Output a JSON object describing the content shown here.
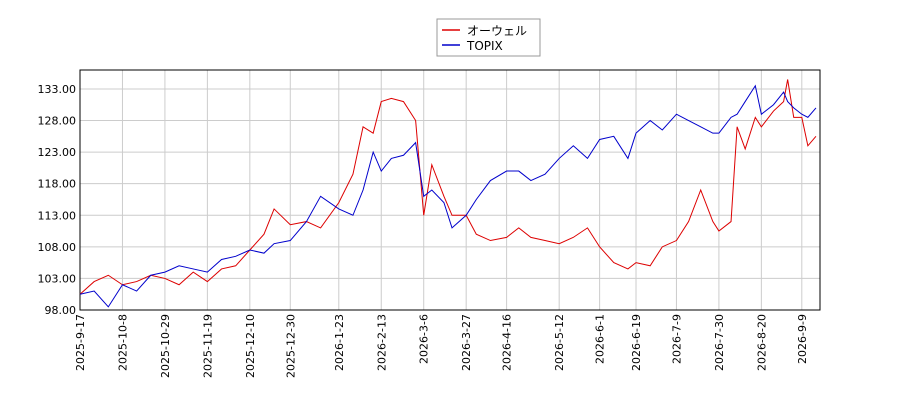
{
  "chart_data": {
    "type": "line",
    "x": [
      "2025-09-17",
      "2025-09-24",
      "2025-10-01",
      "2025-10-08",
      "2025-10-15",
      "2025-10-22",
      "2025-10-29",
      "2025-11-05",
      "2025-11-12",
      "2025-11-19",
      "2025-11-26",
      "2025-12-03",
      "2025-12-10",
      "2025-12-17",
      "2025-12-22",
      "2025-12-30",
      "2026-01-07",
      "2026-01-14",
      "2026-01-23",
      "2026-01-30",
      "2026-02-04",
      "2026-02-09",
      "2026-02-13",
      "2026-02-18",
      "2026-02-24",
      "2026-03-02",
      "2026-03-06",
      "2026-03-10",
      "2026-03-16",
      "2026-03-20",
      "2026-03-27",
      "2026-04-01",
      "2026-04-08",
      "2026-04-16",
      "2026-04-22",
      "2026-04-28",
      "2026-05-05",
      "2026-05-12",
      "2026-05-19",
      "2026-05-26",
      "2026-06-01",
      "2026-06-08",
      "2026-06-15",
      "2026-06-19",
      "2026-06-26",
      "2026-07-02",
      "2026-07-09",
      "2026-07-15",
      "2026-07-21",
      "2026-07-27",
      "2026-07-30",
      "2026-08-05",
      "2026-08-08",
      "2026-08-12",
      "2026-08-17",
      "2026-08-20",
      "2026-08-26",
      "2026-08-31",
      "2026-09-02",
      "2026-09-05",
      "2026-09-09",
      "2026-09-12",
      "2026-09-16"
    ],
    "series": [
      {
        "name": "オーウェル",
        "color": "#dd0000",
        "values": [
          100.5,
          102.5,
          103.5,
          102,
          102.5,
          103.5,
          103,
          102,
          104,
          102.5,
          104.5,
          105,
          107.5,
          110,
          114,
          111.5,
          112,
          111,
          115,
          119.5,
          127,
          126,
          131,
          131.5,
          131,
          128,
          113,
          121,
          116,
          113,
          113,
          110,
          109,
          109.5,
          111,
          109.5,
          109,
          108.5,
          109.5,
          111,
          108,
          105.5,
          104.5,
          105.5,
          105,
          108,
          109,
          112,
          117,
          112,
          110.5,
          112,
          127,
          123.5,
          128.5,
          127,
          129.5,
          131,
          134.5,
          128.5,
          128.5,
          124,
          125.5
        ]
      },
      {
        "name": "TOPIX",
        "color": "#0000cc",
        "values": [
          100.5,
          101,
          98.5,
          102,
          101,
          103.5,
          104,
          105,
          104.5,
          104,
          106,
          106.5,
          107.5,
          107,
          108.5,
          109,
          112,
          116,
          114,
          113,
          117,
          123,
          120,
          122,
          122.5,
          124.5,
          116,
          117,
          115,
          111,
          113,
          115.5,
          118.5,
          120,
          120,
          118.5,
          119.5,
          122,
          124,
          122,
          125,
          125.5,
          122,
          126,
          128,
          126.5,
          129,
          128,
          127,
          126,
          126,
          128.5,
          129,
          131,
          133.5,
          129,
          130.5,
          132.5,
          131,
          130,
          129,
          128.5,
          130
        ]
      }
    ],
    "xlim": [
      "2025-09-17",
      "2026-09-18"
    ],
    "xticks": [
      {
        "value": "2025-09-17",
        "label": "2025-9-17"
      },
      {
        "value": "2025-10-08",
        "label": "2025-10-8"
      },
      {
        "value": "2025-10-29",
        "label": "2025-10-29"
      },
      {
        "value": "2025-11-19",
        "label": "2025-11-19"
      },
      {
        "value": "2025-12-10",
        "label": "2025-12-10"
      },
      {
        "value": "2025-12-30",
        "label": "2025-12-30"
      },
      {
        "value": "2026-01-23",
        "label": "2026-1-23"
      },
      {
        "value": "2026-02-13",
        "label": "2026-2-13"
      },
      {
        "value": "2026-03-06",
        "label": "2026-3-6"
      },
      {
        "value": "2026-03-27",
        "label": "2026-3-27"
      },
      {
        "value": "2026-04-16",
        "label": "2026-4-16"
      },
      {
        "value": "2026-05-12",
        "label": "2026-5-12"
      },
      {
        "value": "2026-06-01",
        "label": "2026-6-1"
      },
      {
        "value": "2026-06-19",
        "label": "2026-6-19"
      },
      {
        "value": "2026-07-09",
        "label": "2026-7-9"
      },
      {
        "value": "2026-07-30",
        "label": "2026-7-30"
      },
      {
        "value": "2026-08-20",
        "label": "2026-8-20"
      },
      {
        "value": "2026-09-09",
        "label": "2026-9-9"
      }
    ],
    "ylim": [
      98,
      136
    ],
    "yticks": [
      {
        "value": 98,
        "label": "98.00"
      },
      {
        "value": 103,
        "label": "103.00"
      },
      {
        "value": 108,
        "label": "108.00"
      },
      {
        "value": 113,
        "label": "113.00"
      },
      {
        "value": 118,
        "label": "118.00"
      },
      {
        "value": 123,
        "label": "123.00"
      },
      {
        "value": 128,
        "label": "128.00"
      },
      {
        "value": 133,
        "label": "133.00"
      }
    ],
    "grid": true,
    "legend": "top"
  }
}
